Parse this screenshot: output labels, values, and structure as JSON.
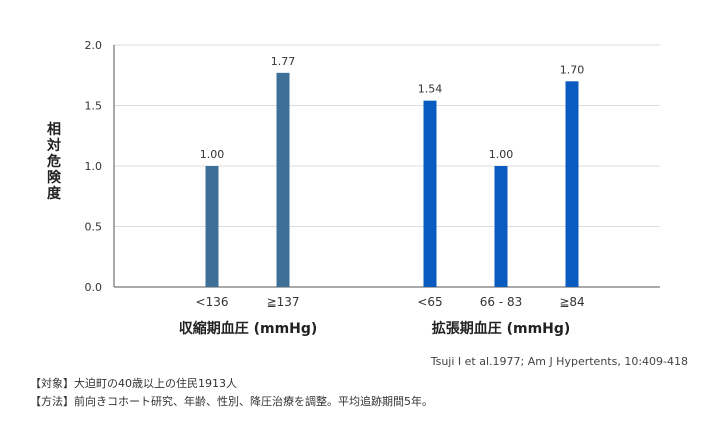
{
  "chart_data": {
    "type": "bar",
    "ylabel": "相対危険度",
    "ylim": [
      0,
      2.0
    ],
    "yticks": [
      "0.0",
      "0.5",
      "1.0",
      "1.5",
      "2.0"
    ],
    "groups": [
      {
        "name": "収縮期血圧 (mmHg)",
        "color": "#3e6f96",
        "categories": [
          "<136",
          "≧137"
        ],
        "values": [
          1.0,
          1.77
        ],
        "value_labels": [
          "1.00",
          "1.77"
        ]
      },
      {
        "name": "拡張期血圧 (mmHg)",
        "color": "#0a5bbf",
        "categories": [
          "<65",
          "66 - 83",
          "≧84"
        ],
        "values": [
          1.54,
          1.0,
          1.7
        ],
        "value_labels": [
          "1.54",
          "1.00",
          "1.70"
        ]
      }
    ]
  },
  "citation": "Tsuji I et al.1977; Am J Hypertents, 10:409-418",
  "notes": [
    "【対象】大迫町の40歳以上の住民1913人",
    "【方法】前向きコホート研究、年齢、性別、降圧治療を調整。平均追跡期間5年。"
  ]
}
